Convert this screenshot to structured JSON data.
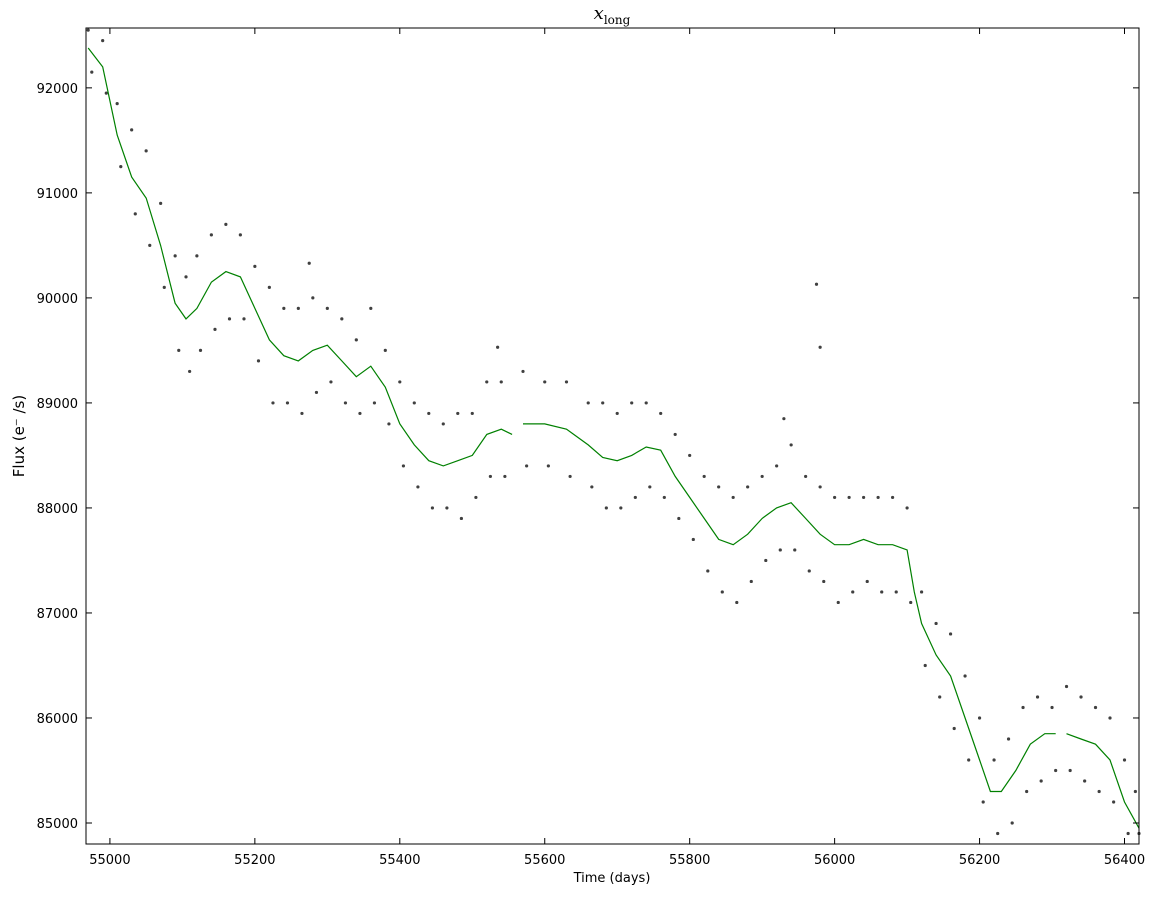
{
  "chart_data": {
    "type": "scatter",
    "title": "x",
    "title_subscript": "long",
    "x_label": "Time (days)",
    "y_label": "Flux (e⁻ /s)",
    "xlim": [
      54967,
      56420
    ],
    "ylim": [
      84800,
      92570
    ],
    "xticks": [
      55000,
      55200,
      55400,
      55600,
      55800,
      56000,
      56200,
      56400
    ],
    "yticks": [
      85000,
      86000,
      87000,
      88000,
      89000,
      90000,
      91000,
      92000
    ],
    "grid": false,
    "series": [
      {
        "type": "scatter",
        "color": "#000000",
        "x": [
          54970,
          54975,
          54990,
          54995,
          55010,
          55015,
          55030,
          55035,
          55050,
          55055,
          55070,
          55075,
          55090,
          55095,
          55105,
          55110,
          55120,
          55125,
          55140,
          55145,
          55160,
          55165,
          55180,
          55185,
          55200,
          55205,
          55220,
          55225,
          55240,
          55245,
          55260,
          55265,
          55280,
          55285,
          55300,
          55305,
          55320,
          55325,
          55340,
          55345,
          55360,
          55365,
          55380,
          55385,
          55400,
          55405,
          55420,
          55425,
          55440,
          55445,
          55460,
          55465,
          55480,
          55485,
          55500,
          55505,
          55520,
          55525,
          55540,
          55545,
          55570,
          55575,
          55600,
          55605,
          55630,
          55635,
          55660,
          55665,
          55680,
          55685,
          55700,
          55705,
          55720,
          55725,
          55740,
          55745,
          55760,
          55765,
          55780,
          55785,
          55800,
          55805,
          55820,
          55825,
          55840,
          55845,
          55860,
          55865,
          55880,
          55885,
          55900,
          55905,
          55920,
          55925,
          55940,
          55945,
          55960,
          55965,
          55980,
          55985,
          56000,
          56005,
          56020,
          56025,
          56040,
          56045,
          56060,
          56065,
          56080,
          56085,
          56100,
          56105,
          56120,
          56125,
          56140,
          56145,
          56160,
          56165,
          56180,
          56185,
          56200,
          56205,
          56220,
          56225,
          56240,
          56245,
          56260,
          56265,
          56280,
          56285,
          56300,
          56305,
          56320,
          56325,
          56340,
          56345,
          56360,
          56365,
          56380,
          56385,
          56400,
          56405,
          56415,
          56420,
          55275,
          55535,
          55975,
          55980,
          55930
        ],
        "y": [
          92550,
          92150,
          92450,
          91950,
          91850,
          91250,
          91600,
          90800,
          91400,
          90500,
          90900,
          90100,
          90400,
          89500,
          90200,
          89300,
          90400,
          89500,
          90600,
          89700,
          90700,
          89800,
          90600,
          89800,
          90300,
          89400,
          90100,
          89000,
          89900,
          89000,
          89900,
          88900,
          90000,
          89100,
          89900,
          89200,
          89800,
          89000,
          89600,
          88900,
          89900,
          89000,
          89500,
          88800,
          89200,
          88400,
          89000,
          88200,
          88900,
          88000,
          88800,
          88000,
          88900,
          87900,
          88900,
          88100,
          89200,
          88300,
          89200,
          88300,
          89300,
          88400,
          89200,
          88400,
          89200,
          88300,
          89000,
          88200,
          89000,
          88000,
          88900,
          88000,
          89000,
          88100,
          89000,
          88200,
          88900,
          88100,
          88700,
          87900,
          88500,
          87700,
          88300,
          87400,
          88200,
          87200,
          88100,
          87100,
          88200,
          87300,
          88300,
          87500,
          88400,
          87600,
          88600,
          87600,
          88300,
          87400,
          88200,
          87300,
          88100,
          87100,
          88100,
          87200,
          88100,
          87300,
          88100,
          87200,
          88100,
          87200,
          88000,
          87100,
          87200,
          86500,
          86900,
          86200,
          86800,
          85900,
          86400,
          85600,
          86000,
          85200,
          85600,
          84900,
          85800,
          85000,
          86100,
          85300,
          86200,
          85400,
          86100,
          85500,
          86300,
          85500,
          86200,
          85400,
          86100,
          85300,
          86000,
          85200,
          85600,
          84900,
          85300,
          84900,
          90330,
          89530,
          90130,
          89530,
          88850
        ]
      },
      {
        "type": "line",
        "color": "#008000",
        "x": [
          54970,
          54990,
          55010,
          55030,
          55050,
          55070,
          55090,
          55105,
          55120,
          55140,
          55160,
          55180,
          55200,
          55220,
          55240,
          55260,
          55280,
          55300,
          55320,
          55340,
          55360,
          55380,
          55400,
          55420,
          55440,
          55460,
          55480,
          55500,
          55520,
          55540,
          55555,
          55562,
          55570,
          55600,
          55630,
          55640,
          55660,
          55680,
          55700,
          55720,
          55740,
          55760,
          55780,
          55800,
          55820,
          55840,
          55860,
          55880,
          55900,
          55920,
          55940,
          55960,
          55980,
          56000,
          56020,
          56040,
          56060,
          56080,
          56100,
          56110,
          56120,
          56140,
          56160,
          56180,
          56200,
          56215,
          56230,
          56250,
          56270,
          56290,
          56305,
          56312,
          56320,
          56340,
          56360,
          56380,
          56400,
          56420
        ],
        "y": [
          92380,
          92200,
          91550,
          91150,
          90950,
          90500,
          89950,
          89800,
          89900,
          90150,
          90250,
          90200,
          89900,
          89600,
          89450,
          89400,
          89500,
          89550,
          89400,
          89250,
          89350,
          89150,
          88800,
          88600,
          88450,
          88400,
          88450,
          88500,
          88700,
          88750,
          88700,
          null,
          88800,
          88800,
          88750,
          88700,
          88600,
          88480,
          88450,
          88500,
          88580,
          88550,
          88300,
          88100,
          87900,
          87700,
          87650,
          87750,
          87900,
          88000,
          88050,
          87900,
          87750,
          87650,
          87650,
          87700,
          87650,
          87650,
          87600,
          87200,
          86900,
          86600,
          86400,
          86000,
          85600,
          85300,
          85300,
          85500,
          85750,
          85850,
          85850,
          null,
          85850,
          85800,
          85750,
          85600,
          85200,
          84950
        ]
      }
    ]
  }
}
